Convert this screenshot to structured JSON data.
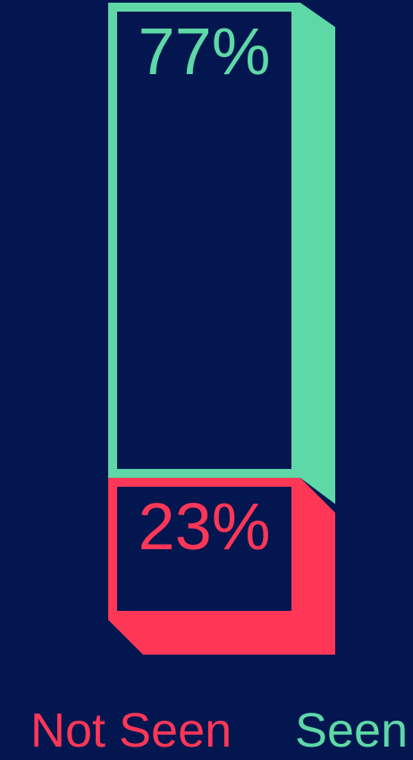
{
  "colors": {
    "background": "#031650",
    "seen": "#5ed8a6",
    "not_seen": "#ff3757"
  },
  "chart_data": {
    "type": "bar",
    "stacked": true,
    "unit": "%",
    "series": [
      {
        "name": "Not Seen",
        "value": 23,
        "label": "23%",
        "color": "#ff3757"
      },
      {
        "name": "Seen",
        "value": 77,
        "label": "77%",
        "color": "#5ed8a6"
      }
    ],
    "ylim": [
      0,
      100
    ],
    "legend": {
      "placement": "bottom",
      "entries": [
        "Not Seen",
        "Seen"
      ]
    },
    "grid": false
  }
}
